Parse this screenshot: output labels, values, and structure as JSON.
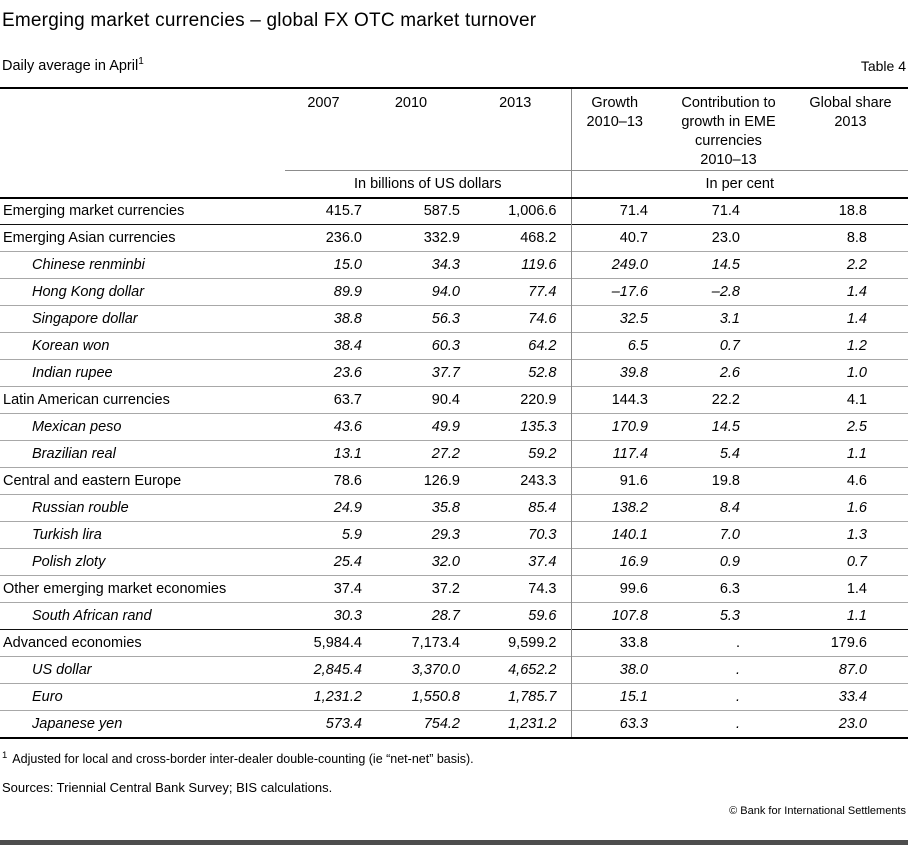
{
  "header": {
    "title": "Emerging market currencies – global FX OTC market turnover",
    "subtitle": "Daily average in April",
    "subtitle_footnote_marker": "1",
    "table_label": "Table 4"
  },
  "table": {
    "col_headers": {
      "years": [
        "2007",
        "2010",
        "2013"
      ],
      "growth": "Growth\n2010–13",
      "contribution": "Contribution to\ngrowth in EME\ncurrencies\n2010–13",
      "global_share": "Global share\n2013"
    },
    "units": {
      "billions": "In billions of US dollars",
      "percent": "In per cent"
    },
    "sections": [
      {
        "rows": [
          {
            "label": "Emerging market currencies",
            "style": "group",
            "values": [
              "415.7",
              "587.5",
              "1,006.6",
              "71.4",
              "71.4",
              "18.8"
            ]
          }
        ]
      },
      {
        "rows": [
          {
            "label": "Emerging Asian currencies",
            "style": "group",
            "values": [
              "236.0",
              "332.9",
              "468.2",
              "40.7",
              "23.0",
              "8.8"
            ]
          },
          {
            "label": "Chinese renminbi",
            "style": "currency",
            "values": [
              "15.0",
              "34.3",
              "119.6",
              "249.0",
              "14.5",
              "2.2"
            ]
          },
          {
            "label": "Hong Kong dollar",
            "style": "currency",
            "values": [
              "89.9",
              "94.0",
              "77.4",
              "–17.6",
              "–2.8",
              "1.4"
            ]
          },
          {
            "label": "Singapore dollar",
            "style": "currency",
            "values": [
              "38.8",
              "56.3",
              "74.6",
              "32.5",
              "3.1",
              "1.4"
            ]
          },
          {
            "label": "Korean won",
            "style": "currency",
            "values": [
              "38.4",
              "60.3",
              "64.2",
              "6.5",
              "0.7",
              "1.2"
            ]
          },
          {
            "label": "Indian rupee",
            "style": "currency",
            "values": [
              "23.6",
              "37.7",
              "52.8",
              "39.8",
              "2.6",
              "1.0"
            ]
          },
          {
            "label": "Latin American currencies",
            "style": "group",
            "values": [
              "63.7",
              "90.4",
              "220.9",
              "144.3",
              "22.2",
              "4.1"
            ]
          },
          {
            "label": "Mexican peso",
            "style": "currency",
            "values": [
              "43.6",
              "49.9",
              "135.3",
              "170.9",
              "14.5",
              "2.5"
            ]
          },
          {
            "label": "Brazilian real",
            "style": "currency",
            "values": [
              "13.1",
              "27.2",
              "59.2",
              "117.4",
              "5.4",
              "1.1"
            ]
          },
          {
            "label": "Central and eastern Europe",
            "style": "group",
            "values": [
              "78.6",
              "126.9",
              "243.3",
              "91.6",
              "19.8",
              "4.6"
            ]
          },
          {
            "label": "Russian rouble",
            "style": "currency",
            "values": [
              "24.9",
              "35.8",
              "85.4",
              "138.2",
              "8.4",
              "1.6"
            ]
          },
          {
            "label": "Turkish lira",
            "style": "currency",
            "values": [
              "5.9",
              "29.3",
              "70.3",
              "140.1",
              "7.0",
              "1.3"
            ]
          },
          {
            "label": "Polish zloty",
            "style": "currency",
            "values": [
              "25.4",
              "32.0",
              "37.4",
              "16.9",
              "0.9",
              "0.7"
            ]
          },
          {
            "label": "Other emerging market economies",
            "style": "group",
            "values": [
              "37.4",
              "37.2",
              "74.3",
              "99.6",
              "6.3",
              "1.4"
            ]
          },
          {
            "label": "South African rand",
            "style": "currency",
            "values": [
              "30.3",
              "28.7",
              "59.6",
              "107.8",
              "5.3",
              "1.1"
            ]
          }
        ]
      },
      {
        "rows": [
          {
            "label": "Advanced economies",
            "style": "group",
            "values": [
              "5,984.4",
              "7,173.4",
              "9,599.2",
              "33.8",
              ".",
              "179.6"
            ]
          },
          {
            "label": "US dollar",
            "style": "currency",
            "values": [
              "2,845.4",
              "3,370.0",
              "4,652.2",
              "38.0",
              ".",
              "87.0"
            ]
          },
          {
            "label": "Euro",
            "style": "currency",
            "values": [
              "1,231.2",
              "1,550.8",
              "1,785.7",
              "15.1",
              ".",
              "33.4"
            ]
          },
          {
            "label": "Japanese yen",
            "style": "currency",
            "values": [
              "573.4",
              "754.2",
              "1,231.2",
              "63.3",
              ".",
              "23.0"
            ]
          }
        ]
      }
    ]
  },
  "footer": {
    "footnote_marker": "1",
    "footnote": "Adjusted for local and cross-border inter-dealer double-counting (ie “net-net” basis).",
    "sources": "Sources: Triennial Central Bank Survey; BIS calculations.",
    "copyright": "© Bank for International Settlements"
  }
}
